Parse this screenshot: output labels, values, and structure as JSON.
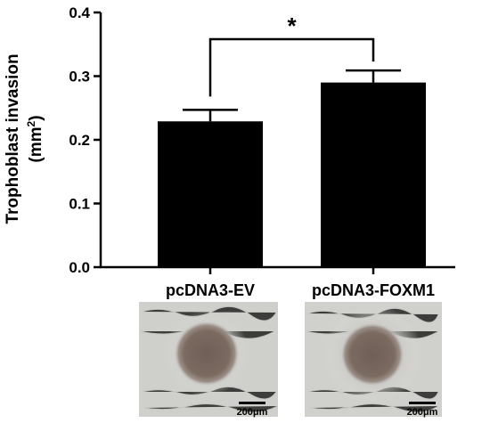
{
  "chart_data": {
    "type": "bar",
    "categories": [
      "pcDNA3-EV",
      "pcDNA3-FOXM1"
    ],
    "values": [
      0.229,
      0.29
    ],
    "error": [
      0.018,
      0.019
    ],
    "ylim": [
      0,
      0.4
    ],
    "yticks": [
      "0.0",
      "0.1",
      "0.2",
      "0.3",
      "0.4"
    ],
    "ylabel_line1": "Trophoblast invasion",
    "ylabel_line2_main": "(mm",
    "ylabel_line2_sup": "2",
    "ylabel_line2_end": ")",
    "significance": "*",
    "bar_color": "#000000",
    "grid": false
  },
  "micrographs": [
    {
      "scale_label": "200μm"
    },
    {
      "scale_label": "200μm"
    }
  ]
}
